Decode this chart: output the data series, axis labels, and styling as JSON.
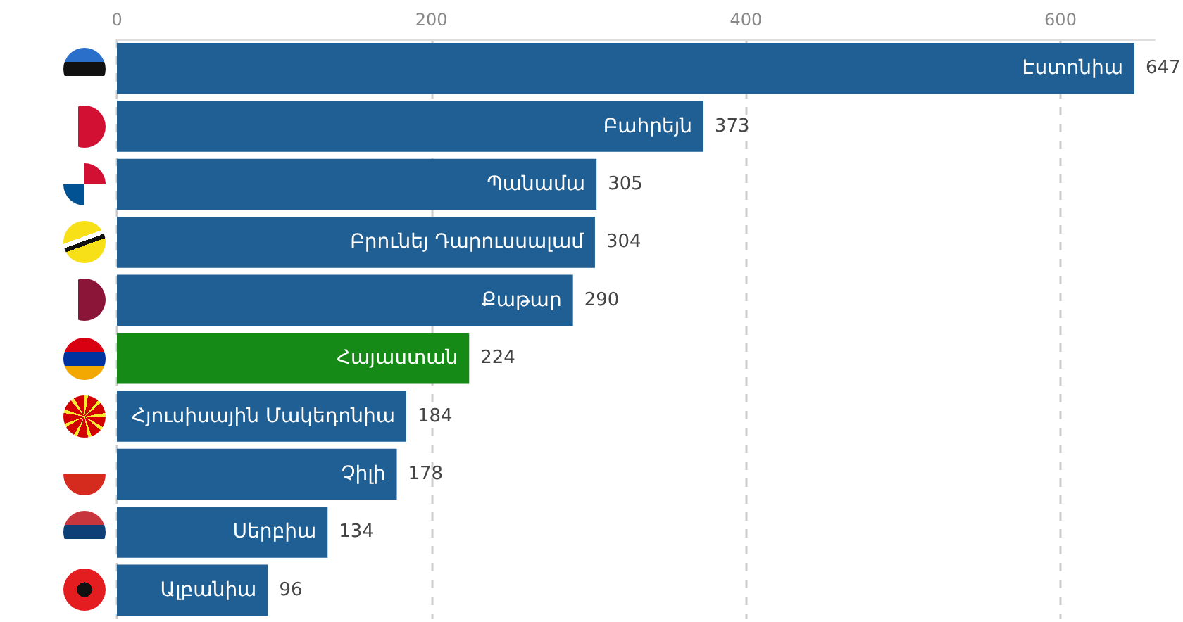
{
  "chart_data": {
    "type": "bar",
    "orientation": "horizontal",
    "categories": [
      "Էստոնիա",
      "Բահրեյն",
      "Պանամա",
      "Բրունեյ Դարուսսալամ",
      "Քաթար",
      "Հայաստան",
      "Հյուսիսային Մակեդոնիա",
      "Չիլի",
      "Սերբիա",
      "Ալբանիա"
    ],
    "values": [
      647,
      373,
      305,
      304,
      290,
      224,
      184,
      178,
      134,
      96
    ],
    "colors": [
      "#1f5f94",
      "#1f5f94",
      "#1f5f94",
      "#1f5f94",
      "#1f5f94",
      "#168a16",
      "#1f5f94",
      "#1f5f94",
      "#1f5f94",
      "#1f5f94"
    ],
    "xlim": [
      0,
      660
    ],
    "xticks": [
      0,
      200,
      400,
      600
    ],
    "grid": "x",
    "data_labels": true
  }
}
